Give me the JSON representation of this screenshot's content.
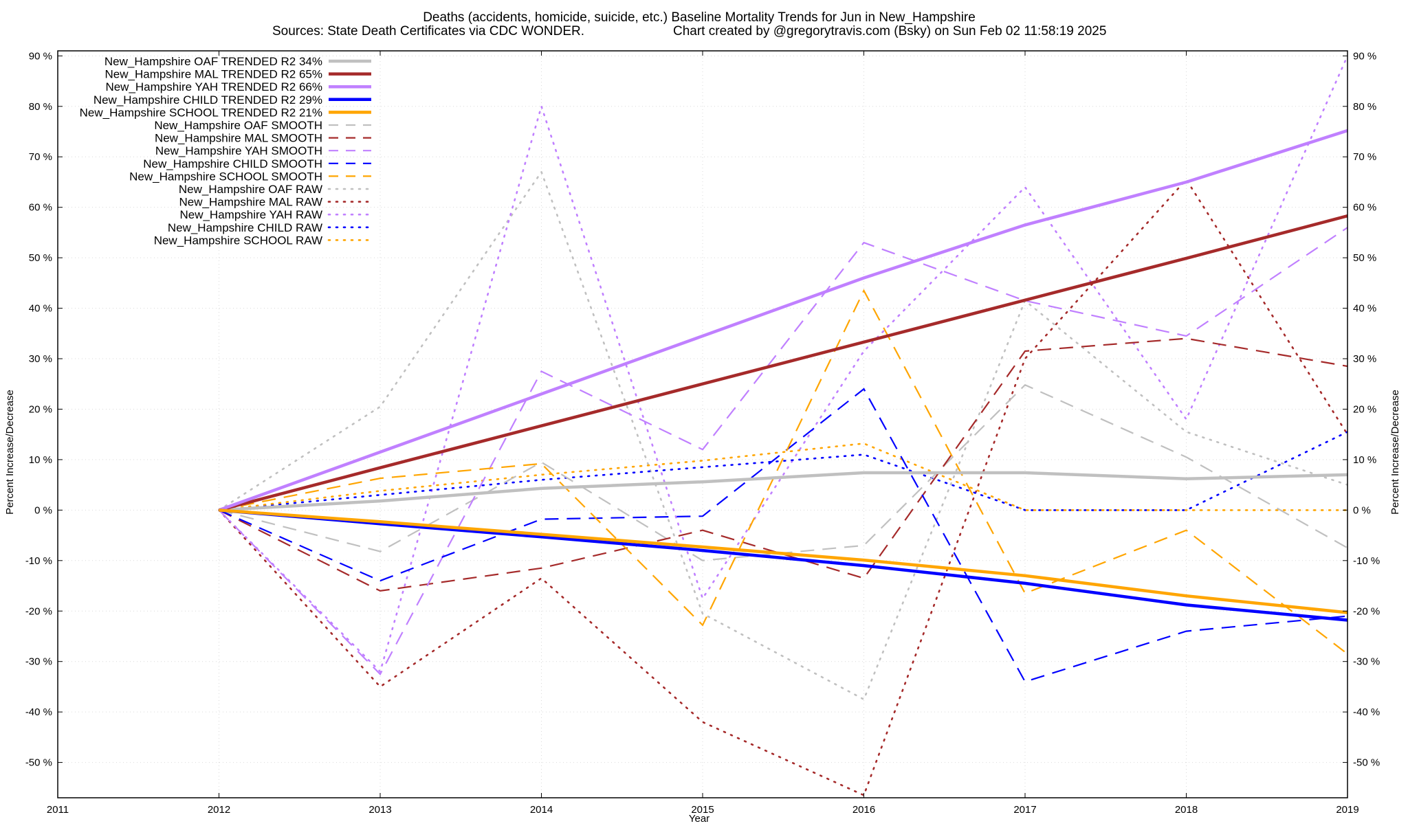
{
  "chart_data": {
    "type": "line",
    "title": "Deaths (accidents, homicide, suicide, etc.)  Baseline Mortality Trends for Jun in New_Hampshire",
    "subtitle_left": "Sources: State Death Certificates via CDC WONDER.",
    "subtitle_right": "Chart created by @gregorytravis.com (Bsky) on Sun Feb 02 11:58:19 2025",
    "xlabel": "Year",
    "ylabel": "Percent Increase/Decrease",
    "y2label": "Percent Increase/Decrease",
    "xlim": [
      2011,
      2019
    ],
    "ylim": [
      -57,
      91
    ],
    "x_ticks": [
      2011,
      2012,
      2013,
      2014,
      2015,
      2016,
      2017,
      2018,
      2019
    ],
    "x_tick_labels": [
      "2011",
      "2012",
      "2013",
      "2014",
      "2015",
      "2016",
      "2017",
      "2018",
      "2019"
    ],
    "y_ticks": [
      -50,
      -40,
      -30,
      -20,
      -10,
      0,
      10,
      20,
      30,
      40,
      50,
      60,
      70,
      80,
      90
    ],
    "y_tick_labels": [
      "-50 %",
      "-40 %",
      "-30 %",
      "-20 %",
      "-10 %",
      "0 %",
      "10 %",
      "20 %",
      "30 %",
      "40 %",
      "50 %",
      "60 %",
      "70 %",
      "80 %",
      "90 %"
    ],
    "grid": true,
    "legend_position": "top-left",
    "x": [
      2012,
      2013,
      2014,
      2015,
      2016,
      2017,
      2018,
      2019
    ],
    "series": [
      {
        "name": "New_Hampshire OAF TRENDED R2  34%",
        "style": "solid",
        "color": "#c0c0c0",
        "values": [
          0,
          1.8,
          4.3,
          5.6,
          7.4,
          7.4,
          6.2,
          7.0
        ]
      },
      {
        "name": "New_Hampshire MAL TRENDED R2  65%",
        "style": "solid",
        "color": "#a52a2a",
        "values": [
          0,
          8.4,
          16.7,
          25.0,
          33.3,
          41.6,
          49.9,
          58.3
        ]
      },
      {
        "name": "New_Hampshire YAH TRENDED R2  66%",
        "style": "solid",
        "color": "#c080ff",
        "values": [
          0,
          11.5,
          23.0,
          34.5,
          46.0,
          56.5,
          65.0,
          75.2
        ]
      },
      {
        "name": "New_Hampshire CHILD TRENDED R2  29%",
        "style": "solid",
        "color": "#0000ff",
        "values": [
          0,
          -2.7,
          -5.3,
          -8.0,
          -11.0,
          -14.5,
          -18.8,
          -21.8
        ]
      },
      {
        "name": "New_Hampshire SCHOOL TRENDED R2  21%",
        "style": "solid",
        "color": "#ffa500",
        "values": [
          0,
          -2.3,
          -4.8,
          -7.3,
          -9.9,
          -13.0,
          -17.0,
          -20.3
        ]
      },
      {
        "name": "New_Hampshire OAF SMOOTH",
        "style": "dashed",
        "color": "#c0c0c0",
        "values": [
          0,
          -8.2,
          9.5,
          -10.0,
          -7.0,
          24.8,
          10.5,
          -7.5
        ]
      },
      {
        "name": "New_Hampshire MAL SMOOTH",
        "style": "dashed",
        "color": "#a52a2a",
        "values": [
          0,
          -16.0,
          -11.5,
          -4.0,
          -13.5,
          31.5,
          34.0,
          28.5
        ]
      },
      {
        "name": "New_Hampshire YAH SMOOTH",
        "style": "dashed",
        "color": "#c080ff",
        "values": [
          0,
          -32.5,
          27.5,
          12.0,
          53.0,
          41.5,
          34.5,
          56.0
        ]
      },
      {
        "name": "New_Hampshire CHILD SMOOTH",
        "style": "dashed",
        "color": "#0000ff",
        "values": [
          0,
          -14.0,
          -1.8,
          -1.2,
          24.0,
          -34.0,
          -24.0,
          -21.0
        ]
      },
      {
        "name": "New_Hampshire SCHOOL SMOOTH",
        "style": "dashed",
        "color": "#ffa500",
        "values": [
          0,
          6.3,
          9.2,
          -22.8,
          43.5,
          -16.5,
          -4.0,
          -28.5
        ]
      },
      {
        "name": "New_Hampshire OAF RAW",
        "style": "dotted",
        "color": "#c0c0c0",
        "values": [
          0,
          20.5,
          67.0,
          -20.5,
          -37.5,
          41.5,
          15.5,
          5.0
        ]
      },
      {
        "name": "New_Hampshire MAL RAW",
        "style": "dotted",
        "color": "#a52a2a",
        "values": [
          0,
          -35.0,
          -13.5,
          -42.0,
          -56.5,
          30.0,
          65.5,
          15.0
        ]
      },
      {
        "name": "New_Hampshire YAH RAW",
        "style": "dotted",
        "color": "#c080ff",
        "values": [
          0,
          -32.0,
          80.0,
          -17.5,
          31.5,
          64.0,
          18.0,
          90.0
        ]
      },
      {
        "name": "New_Hampshire CHILD RAW",
        "style": "dotted",
        "color": "#0000ff",
        "values": [
          0,
          3.0,
          6.0,
          8.5,
          11.0,
          0,
          0,
          15.5
        ]
      },
      {
        "name": "New_Hampshire SCHOOL RAW",
        "style": "dotted",
        "color": "#ffa500",
        "values": [
          0,
          3.8,
          7.0,
          9.8,
          13.2,
          0,
          0,
          0
        ]
      }
    ]
  }
}
